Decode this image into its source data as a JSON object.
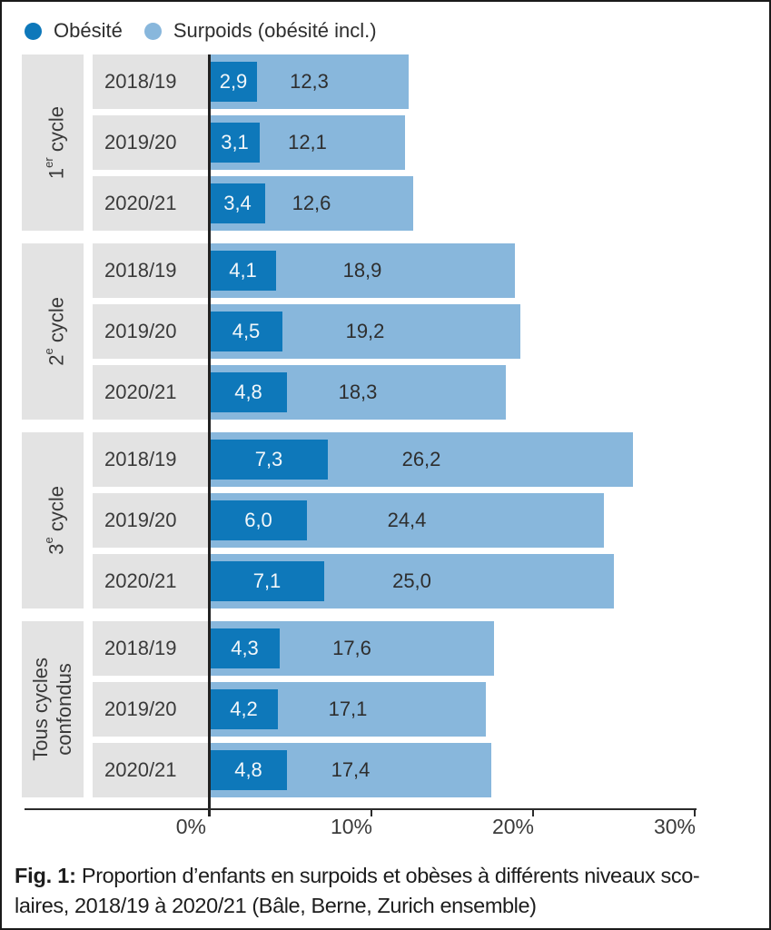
{
  "colors": {
    "obesite": "#0e78ba",
    "surpoids": "#88b7dc",
    "row_bg": "#e3e3e3",
    "text": "#3a3a3a",
    "axis": "#2b2b2b"
  },
  "legend": [
    {
      "label": "Obésité",
      "color": "#0e78ba"
    },
    {
      "label": "Surpoids (obésité incl.)",
      "color": "#88b7dc"
    }
  ],
  "chart_data": {
    "type": "bar",
    "orientation": "horizontal",
    "title": "Proportion d’enfants en surpoids et obèses à différents niveaux scolaires, 2018/19 à 2020/21 (Bâle, Berne, Zurich ensemble)",
    "unit": "%",
    "xlim": [
      0,
      30
    ],
    "x_ticks": [
      {
        "value": 0,
        "label": "0%"
      },
      {
        "value": 10,
        "label": "10%"
      },
      {
        "value": 20,
        "label": "20%"
      },
      {
        "value": 30,
        "label": "30%"
      }
    ],
    "series_names": [
      "Obésité",
      "Surpoids (obésité incl.)"
    ],
    "legend_position": "top-left",
    "grid": false,
    "groups": [
      {
        "label_text": "1er cycle",
        "label_sup_parts": [
          "1",
          "er",
          " cycle"
        ],
        "rows": [
          {
            "year": "2018/19",
            "obesite": 2.9,
            "surpoids": 12.3,
            "obesite_label": "2,9",
            "surpoids_label": "12,3"
          },
          {
            "year": "2019/20",
            "obesite": 3.1,
            "surpoids": 12.1,
            "obesite_label": "3,1",
            "surpoids_label": "12,1"
          },
          {
            "year": "2020/21",
            "obesite": 3.4,
            "surpoids": 12.6,
            "obesite_label": "3,4",
            "surpoids_label": "12,6"
          }
        ]
      },
      {
        "label_text": "2e cycle",
        "label_sup_parts": [
          "2",
          "e",
          " cycle"
        ],
        "rows": [
          {
            "year": "2018/19",
            "obesite": 4.1,
            "surpoids": 18.9,
            "obesite_label": "4,1",
            "surpoids_label": "18,9"
          },
          {
            "year": "2019/20",
            "obesite": 4.5,
            "surpoids": 19.2,
            "obesite_label": "4,5",
            "surpoids_label": "19,2"
          },
          {
            "year": "2020/21",
            "obesite": 4.8,
            "surpoids": 18.3,
            "obesite_label": "4,8",
            "surpoids_label": "18,3"
          }
        ]
      },
      {
        "label_text": "3e cycle",
        "label_sup_parts": [
          "3",
          "e",
          " cycle"
        ],
        "rows": [
          {
            "year": "2018/19",
            "obesite": 7.3,
            "surpoids": 26.2,
            "obesite_label": "7,3",
            "surpoids_label": "26,2"
          },
          {
            "year": "2019/20",
            "obesite": 6.0,
            "surpoids": 24.4,
            "obesite_label": "6,0",
            "surpoids_label": "24,4"
          },
          {
            "year": "2020/21",
            "obesite": 7.1,
            "surpoids": 25.0,
            "obesite_label": "7,1",
            "surpoids_label": "25,0"
          }
        ]
      },
      {
        "label_text": "Tous cycles confondus",
        "label_lines": [
          "Tous cycles",
          "confondus"
        ],
        "rows": [
          {
            "year": "2018/19",
            "obesite": 4.3,
            "surpoids": 17.6,
            "obesite_label": "4,3",
            "surpoids_label": "17,6"
          },
          {
            "year": "2019/20",
            "obesite": 4.2,
            "surpoids": 17.1,
            "obesite_label": "4,2",
            "surpoids_label": "17,1"
          },
          {
            "year": "2020/21",
            "obesite": 4.8,
            "surpoids": 17.4,
            "obesite_label": "4,8",
            "surpoids_label": "17,4"
          }
        ]
      }
    ]
  },
  "caption": {
    "prefix": "Fig. 1:",
    "line1": " Proportion d’enfants en surpoids et obèses à différents niveaux sco-",
    "line2": "laires, 2018/19 à 2020/21 (Bâle, Berne, Zurich ensemble)"
  }
}
